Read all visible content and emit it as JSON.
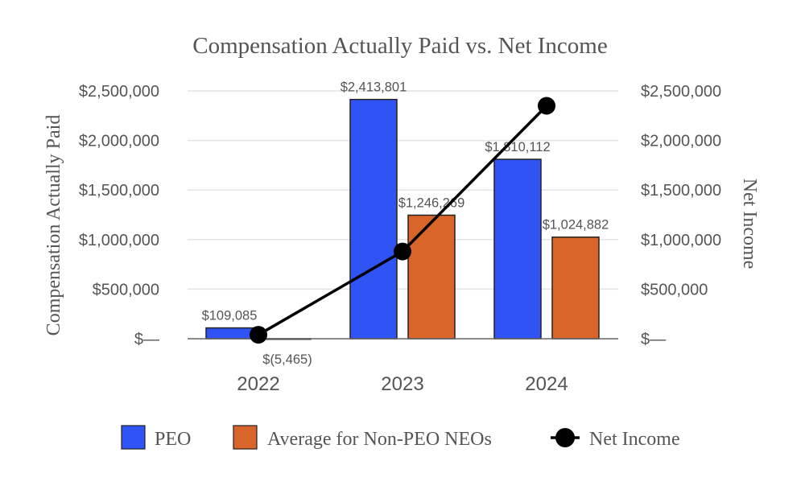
{
  "chart_data": {
    "type": "bar",
    "title": "Compensation Actually Paid vs. Net Income",
    "ylabel": "Compensation Actually Paid",
    "y2label": "Net Income",
    "categories": [
      "2022",
      "2023",
      "2024"
    ],
    "ylim": [
      0,
      2500000
    ],
    "y2lim": [
      0,
      2500000
    ],
    "yticks": [
      {
        "value": 0,
        "label": "$—"
      },
      {
        "value": 500000,
        "label": "$500,000"
      },
      {
        "value": 1000000,
        "label": "$1,000,000"
      },
      {
        "value": 1500000,
        "label": "$1,500,000"
      },
      {
        "value": 2000000,
        "label": "$2,000,000"
      },
      {
        "value": 2500000,
        "label": "$2,500,000"
      }
    ],
    "grid": true,
    "legend_position": "bottom",
    "series": [
      {
        "name": "PEO",
        "kind": "bar",
        "color": "#2f53f5",
        "values": [
          109085,
          2413801,
          1810112
        ],
        "labels": [
          "$109,085",
          "$2,413,801",
          "$1,810,112"
        ]
      },
      {
        "name": "Average for Non-PEO NEOs",
        "kind": "bar",
        "color": "#d9652b",
        "values": [
          -5465,
          1246269,
          1024882
        ],
        "labels": [
          "$(5,465)",
          "$1,246,269",
          "$1,024,882"
        ]
      },
      {
        "name": "Net Income",
        "kind": "line",
        "axis": "right",
        "color": "#000000",
        "values": [
          40000,
          880000,
          2350000
        ]
      }
    ]
  }
}
